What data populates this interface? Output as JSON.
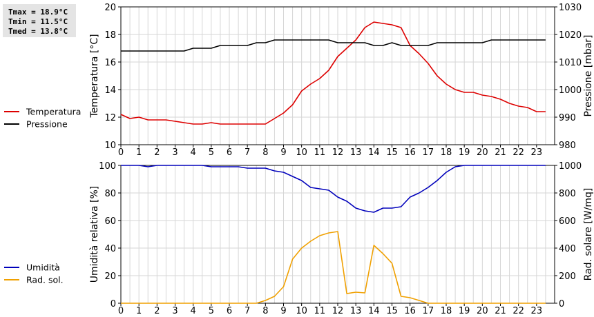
{
  "stats": {
    "tmax": "Tmax = 18.9°C",
    "tmin": "Tmin = 11.5°C",
    "tmed": "Tmed = 13.8°C"
  },
  "chart_data": [
    {
      "type": "line",
      "xlabel": "",
      "x_ticks": [
        "0",
        "1",
        "2",
        "3",
        "4",
        "5",
        "6",
        "7",
        "8",
        "9",
        "10",
        "11",
        "12",
        "13",
        "14",
        "15",
        "16",
        "17",
        "18",
        "19",
        "20",
        "21",
        "22",
        "23"
      ],
      "xlim": [
        0,
        24
      ],
      "ylabel": "Temperatura [°C]",
      "ylim": [
        10,
        20
      ],
      "y_ticks": [
        "10",
        "12",
        "14",
        "16",
        "18",
        "20"
      ],
      "y2label": "Pressione [mbar]",
      "y2lim": [
        980,
        1030
      ],
      "y2_ticks": [
        "980",
        "990",
        "1000",
        "1010",
        "1020",
        "1030"
      ],
      "grid": true,
      "legend_position": "left",
      "x": [
        0,
        0.5,
        1,
        1.5,
        2,
        2.5,
        3,
        3.5,
        4,
        4.5,
        5,
        5.5,
        6,
        6.5,
        7,
        7.5,
        8,
        8.5,
        9,
        9.5,
        10,
        10.5,
        11,
        11.5,
        12,
        12.5,
        13,
        13.5,
        14,
        14.5,
        15,
        15.5,
        16,
        16.5,
        17,
        17.5,
        18,
        18.5,
        19,
        19.5,
        20,
        20.5,
        21,
        21.5,
        22,
        22.5,
        23,
        23.5
      ],
      "series": [
        {
          "name": "Temperatura",
          "color": "#dd0000",
          "axis": "left",
          "values": [
            12.2,
            11.9,
            12.0,
            11.8,
            11.8,
            11.8,
            11.7,
            11.6,
            11.5,
            11.5,
            11.6,
            11.5,
            11.5,
            11.5,
            11.5,
            11.5,
            11.5,
            11.9,
            12.3,
            12.9,
            13.9,
            14.4,
            14.8,
            15.4,
            16.4,
            17.0,
            17.6,
            18.5,
            18.9,
            18.8,
            18.7,
            18.5,
            17.2,
            16.6,
            15.9,
            15.0,
            14.4,
            14.0,
            13.8,
            13.8,
            13.6,
            13.5,
            13.3,
            13.0,
            12.8,
            12.7,
            12.4,
            12.4
          ]
        },
        {
          "name": "Pressione",
          "color": "#000000",
          "axis": "right",
          "values": [
            1014,
            1014,
            1014,
            1014,
            1014,
            1014,
            1014,
            1014,
            1015,
            1015,
            1015,
            1016,
            1016,
            1016,
            1016,
            1017,
            1017,
            1018,
            1018,
            1018,
            1018,
            1018,
            1018,
            1018,
            1017,
            1017,
            1017,
            1017,
            1016,
            1016,
            1017,
            1016,
            1016,
            1016,
            1016,
            1017,
            1017,
            1017,
            1017,
            1017,
            1017,
            1018,
            1018,
            1018,
            1018,
            1018,
            1018,
            1018
          ]
        }
      ]
    },
    {
      "type": "line",
      "xlabel": "",
      "x_ticks": [
        "0",
        "1",
        "2",
        "3",
        "4",
        "5",
        "6",
        "7",
        "8",
        "9",
        "10",
        "11",
        "12",
        "13",
        "14",
        "15",
        "16",
        "17",
        "18",
        "19",
        "20",
        "21",
        "22",
        "23"
      ],
      "xlim": [
        0,
        24
      ],
      "ylabel": "Umidità relativa [%]",
      "ylim": [
        0,
        100
      ],
      "y_ticks": [
        "0",
        "20",
        "40",
        "60",
        "80",
        "100"
      ],
      "y2label": "Rad. solare [W/mq]",
      "y2lim": [
        0,
        1000
      ],
      "y2_ticks": [
        "0",
        "200",
        "400",
        "600",
        "800",
        "1000"
      ],
      "grid": true,
      "legend_position": "left",
      "x": [
        0,
        0.5,
        1,
        1.5,
        2,
        2.5,
        3,
        3.5,
        4,
        4.5,
        5,
        5.5,
        6,
        6.5,
        7,
        7.5,
        8,
        8.5,
        9,
        9.5,
        10,
        10.5,
        11,
        11.5,
        12,
        12.5,
        13,
        13.5,
        14,
        14.5,
        15,
        15.5,
        16,
        16.5,
        17,
        17.5,
        18,
        18.5,
        19,
        19.5,
        20,
        20.5,
        21,
        21.5,
        22,
        22.5,
        23,
        23.5
      ],
      "series": [
        {
          "name": "Umidità",
          "color": "#0000bb",
          "axis": "left",
          "values": [
            100,
            100,
            100,
            99,
            100,
            100,
            100,
            100,
            100,
            100,
            99,
            99,
            99,
            99,
            98,
            98,
            98,
            96,
            95,
            92,
            89,
            84,
            83,
            82,
            77,
            74,
            69,
            67,
            66,
            69,
            69,
            70,
            77,
            80,
            84,
            89,
            95,
            99,
            100,
            100,
            100,
            100,
            100,
            100,
            100,
            100,
            100,
            100
          ]
        },
        {
          "name": "Rad. sol.",
          "color": "#f0a000",
          "axis": "right",
          "values": [
            0,
            0,
            0,
            0,
            0,
            0,
            0,
            0,
            0,
            0,
            0,
            0,
            0,
            0,
            0,
            0,
            20,
            50,
            120,
            320,
            400,
            450,
            490,
            510,
            520,
            70,
            80,
            75,
            420,
            360,
            290,
            50,
            40,
            20,
            0,
            0,
            0,
            0,
            0,
            0,
            0,
            0,
            0,
            0,
            0,
            0,
            0,
            0
          ]
        }
      ]
    }
  ]
}
